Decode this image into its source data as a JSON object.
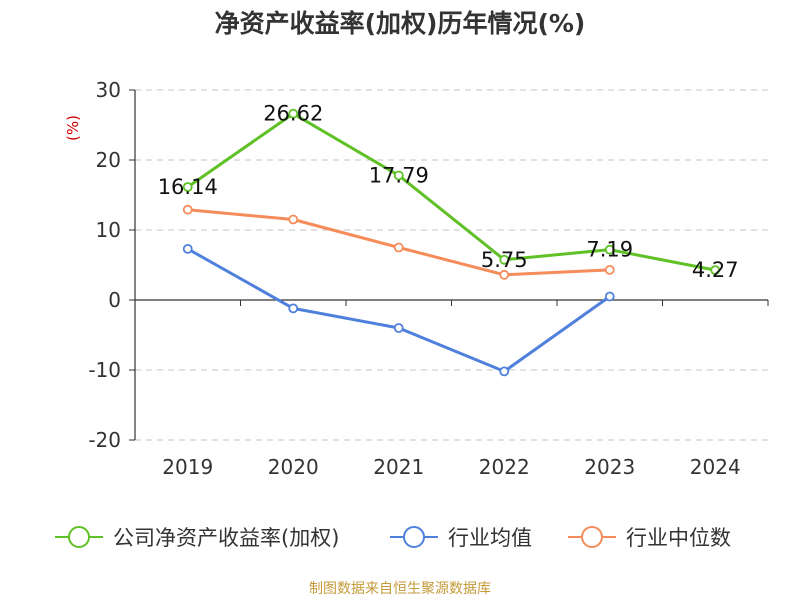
{
  "chart_data": {
    "type": "line",
    "title": "净资产收益率(加权)历年情况(%)",
    "y_unit_label": "(%)",
    "categories": [
      "2019",
      "2020",
      "2021",
      "2022",
      "2023",
      "2024"
    ],
    "ylim": [
      -20,
      30
    ],
    "y_ticks": [
      "30",
      "20",
      "10",
      "0",
      "-10",
      "-20"
    ],
    "grid": true,
    "legend_position": "bottom",
    "series": [
      {
        "name": "公司净资产收益率(加权)",
        "color": "#5fc125",
        "values": [
          16.14,
          26.62,
          17.79,
          5.75,
          7.19,
          4.27
        ],
        "labels": [
          "16.14",
          "26.62",
          "17.79",
          "5.75",
          "7.19",
          "4.27"
        ]
      },
      {
        "name": "行业均值",
        "color": "#4f80dc",
        "values": [
          7.3,
          -1.2,
          -4.0,
          -10.2,
          0.5,
          null
        ]
      },
      {
        "name": "行业中位数",
        "color": "#f58c5a",
        "values": [
          12.9,
          11.5,
          7.5,
          3.6,
          4.3,
          null
        ]
      }
    ]
  },
  "footer": "制图数据来自恒生聚源数据库"
}
